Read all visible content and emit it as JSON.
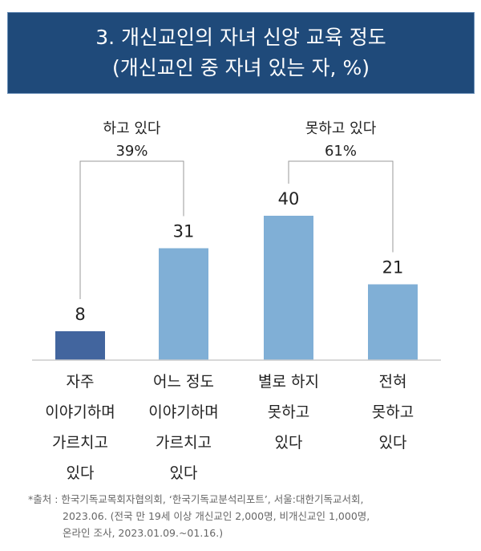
{
  "title": {
    "line1": "3. 개신교인의 자녀 신앙 교육 정도",
    "line2": "(개신교인 중 자녀 있는 자, %)"
  },
  "chart_data": {
    "type": "bar",
    "categories": [
      [
        "자주",
        "이야기하며",
        "가르치고",
        "있다"
      ],
      [
        "어느 정도",
        "이야기하며",
        "가르치고",
        "있다"
      ],
      [
        "별로 하지",
        "못하고",
        "있다"
      ],
      [
        "전혀",
        "못하고",
        "있다"
      ]
    ],
    "values": [
      8,
      31,
      40,
      21
    ],
    "bar_colors": [
      "#42659e",
      "#80afd6",
      "#80afd6",
      "#80afd6"
    ],
    "ylim": [
      0,
      40
    ],
    "grid": false,
    "groups": [
      {
        "label": "하고 있다",
        "value": "39%",
        "bars": [
          0,
          1
        ]
      },
      {
        "label": "못하고 있다",
        "value": "61%",
        "bars": [
          2,
          3
        ]
      }
    ]
  },
  "footnote": [
    "*출처 : 한국기독교목회자협의회, ‘한국기독교분석리포트’, 서울:대한기독교서회,",
    "2023.06. (전국 만 19세 이상 개신교인 2,000명, 비개신교인 1,000명,",
    "온라인 조사, 2023.01.09.~01.16.)"
  ]
}
